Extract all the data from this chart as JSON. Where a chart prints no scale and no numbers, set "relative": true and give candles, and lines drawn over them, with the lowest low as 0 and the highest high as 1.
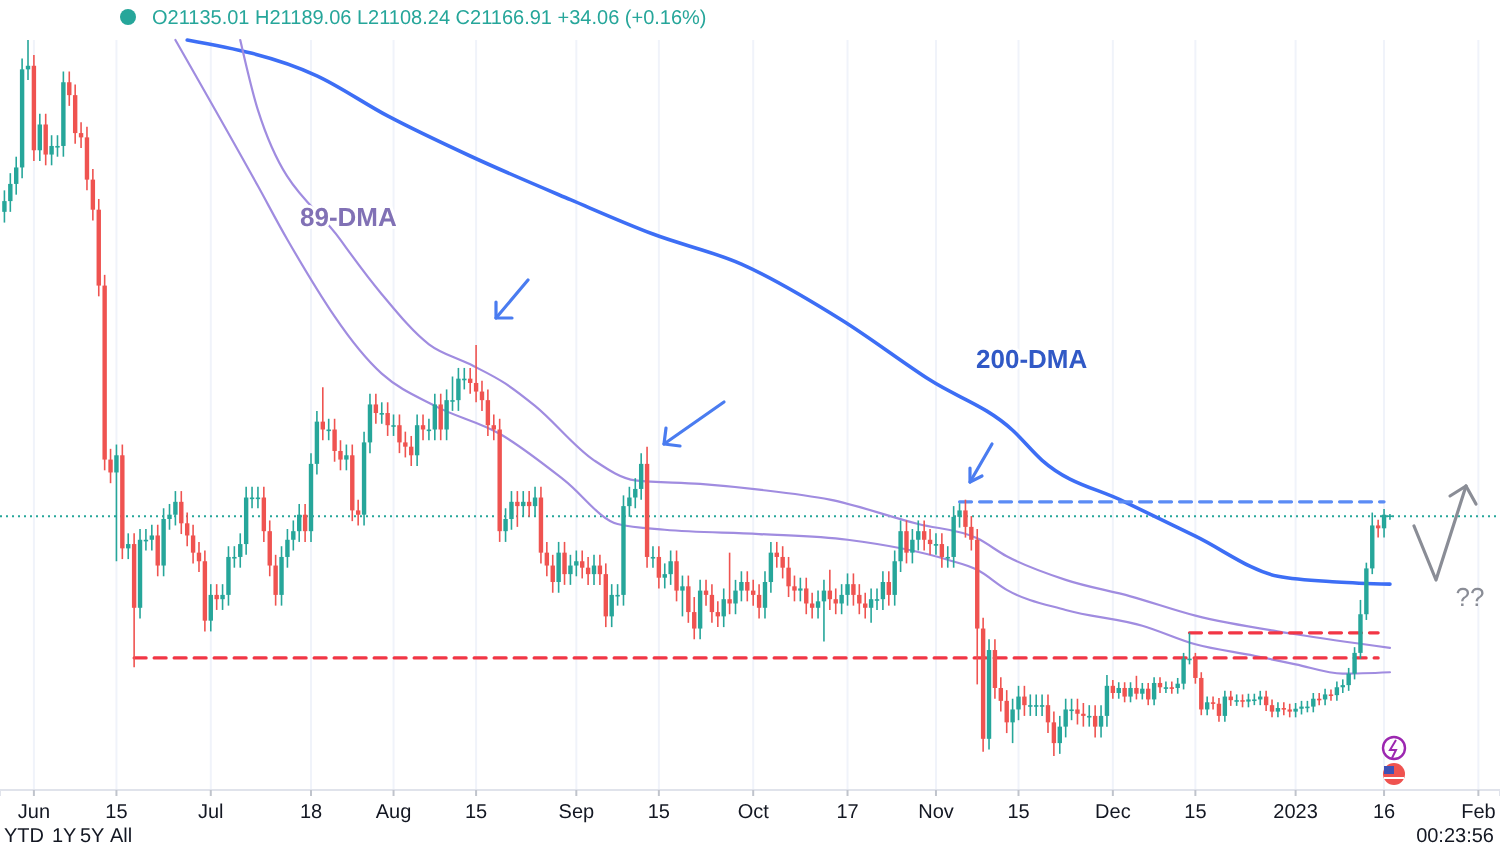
{
  "chart_data": {
    "type": "candlestick",
    "relative": true,
    "grid": "x",
    "xlim": [
      "2022-05-26T06:00",
      "2023-02-04T16:00"
    ],
    "xticks": [
      {
        "value": "2022-06-01",
        "label": "Jun"
      },
      {
        "value": "2022-06-15",
        "label": "15"
      },
      {
        "value": "2022-07-01",
        "label": "Jul"
      },
      {
        "value": "2022-07-18",
        "label": "18"
      },
      {
        "value": "2022-08-01",
        "label": "Aug"
      },
      {
        "value": "2022-08-15",
        "label": "15"
      },
      {
        "value": "2022-09-01",
        "label": "Sep"
      },
      {
        "value": "2022-09-15",
        "label": "15"
      },
      {
        "value": "2022-10-01",
        "label": "Oct"
      },
      {
        "value": "2022-10-17",
        "label": "17"
      },
      {
        "value": "2022-11-01",
        "label": "Nov"
      },
      {
        "value": "2022-11-15",
        "label": "15"
      },
      {
        "value": "2022-12-01",
        "label": "Dec"
      },
      {
        "value": "2022-12-15",
        "label": "15"
      },
      {
        "value": "2023-01-01",
        "label": "2023"
      },
      {
        "value": "2023-01-16",
        "label": "16"
      },
      {
        "value": "2023-02-01",
        "label": "Feb"
      }
    ],
    "x": [
      "2022-05-27",
      "2022-05-28",
      "2022-05-29",
      "2022-05-30",
      "2022-05-31",
      "2022-06-01",
      "2022-06-02",
      "2022-06-03",
      "2022-06-04",
      "2022-06-05",
      "2022-06-06",
      "2022-06-07",
      "2022-06-08",
      "2022-06-09",
      "2022-06-10",
      "2022-06-11",
      "2022-06-12",
      "2022-06-13",
      "2022-06-14",
      "2022-06-15",
      "2022-06-16",
      "2022-06-17",
      "2022-06-18",
      "2022-06-19",
      "2022-06-20",
      "2022-06-21",
      "2022-06-22",
      "2022-06-23",
      "2022-06-24",
      "2022-06-25",
      "2022-06-26",
      "2022-06-27",
      "2022-06-28",
      "2022-06-29",
      "2022-06-30",
      "2022-07-01",
      "2022-07-02",
      "2022-07-03",
      "2022-07-04",
      "2022-07-05",
      "2022-07-06",
      "2022-07-07",
      "2022-07-08",
      "2022-07-09",
      "2022-07-10",
      "2022-07-11",
      "2022-07-12",
      "2022-07-13",
      "2022-07-14",
      "2022-07-15",
      "2022-07-16",
      "2022-07-17",
      "2022-07-18",
      "2022-07-19",
      "2022-07-20",
      "2022-07-21",
      "2022-07-22",
      "2022-07-23",
      "2022-07-24",
      "2022-07-25",
      "2022-07-26",
      "2022-07-27",
      "2022-07-28",
      "2022-07-29",
      "2022-07-30",
      "2022-07-31",
      "2022-08-01",
      "2022-08-02",
      "2022-08-03",
      "2022-08-04",
      "2022-08-05",
      "2022-08-06",
      "2022-08-07",
      "2022-08-08",
      "2022-08-09",
      "2022-08-10",
      "2022-08-11",
      "2022-08-12",
      "2022-08-13",
      "2022-08-14",
      "2022-08-15",
      "2022-08-16",
      "2022-08-17",
      "2022-08-18",
      "2022-08-19",
      "2022-08-20",
      "2022-08-21",
      "2022-08-22",
      "2022-08-23",
      "2022-08-24",
      "2022-08-25",
      "2022-08-26",
      "2022-08-27",
      "2022-08-28",
      "2022-08-29",
      "2022-08-30",
      "2022-08-31",
      "2022-09-01",
      "2022-09-02",
      "2022-09-03",
      "2022-09-04",
      "2022-09-05",
      "2022-09-06",
      "2022-09-07",
      "2022-09-08",
      "2022-09-09",
      "2022-09-10",
      "2022-09-11",
      "2022-09-12",
      "2022-09-13",
      "2022-09-14",
      "2022-09-15",
      "2022-09-16",
      "2022-09-17",
      "2022-09-18",
      "2022-09-19",
      "2022-09-20",
      "2022-09-21",
      "2022-09-22",
      "2022-09-23",
      "2022-09-24",
      "2022-09-25",
      "2022-09-26",
      "2022-09-27",
      "2022-09-28",
      "2022-09-29",
      "2022-09-30",
      "2022-10-01",
      "2022-10-02",
      "2022-10-03",
      "2022-10-04",
      "2022-10-05",
      "2022-10-06",
      "2022-10-07",
      "2022-10-08",
      "2022-10-09",
      "2022-10-10",
      "2022-10-11",
      "2022-10-12",
      "2022-10-13",
      "2022-10-14",
      "2022-10-15",
      "2022-10-16",
      "2022-10-17",
      "2022-10-18",
      "2022-10-19",
      "2022-10-20",
      "2022-10-21",
      "2022-10-22",
      "2022-10-23",
      "2022-10-24",
      "2022-10-25",
      "2022-10-26",
      "2022-10-27",
      "2022-10-28",
      "2022-10-29",
      "2022-10-30",
      "2022-10-31",
      "2022-11-01",
      "2022-11-02",
      "2022-11-03",
      "2022-11-04",
      "2022-11-05",
      "2022-11-06",
      "2022-11-07",
      "2022-11-08",
      "2022-11-09",
      "2022-11-10",
      "2022-11-11",
      "2022-11-12",
      "2022-11-13",
      "2022-11-14",
      "2022-11-15",
      "2022-11-16",
      "2022-11-17",
      "2022-11-18",
      "2022-11-19",
      "2022-11-20",
      "2022-11-21",
      "2022-11-22",
      "2022-11-23",
      "2022-11-24",
      "2022-11-25",
      "2022-11-26",
      "2022-11-27",
      "2022-11-28",
      "2022-11-29",
      "2022-11-30",
      "2022-12-01",
      "2022-12-02",
      "2022-12-03",
      "2022-12-04",
      "2022-12-05",
      "2022-12-06",
      "2022-12-07",
      "2022-12-08",
      "2022-12-09",
      "2022-12-10",
      "2022-12-11",
      "2022-12-12",
      "2022-12-13",
      "2022-12-14",
      "2022-12-15",
      "2022-12-16",
      "2022-12-17",
      "2022-12-18",
      "2022-12-19",
      "2022-12-20",
      "2022-12-21",
      "2022-12-22",
      "2022-12-23",
      "2022-12-24",
      "2022-12-25",
      "2022-12-26",
      "2022-12-27",
      "2022-12-28",
      "2022-12-29",
      "2022-12-30",
      "2022-12-31",
      "2023-01-01",
      "2023-01-02",
      "2023-01-03",
      "2023-01-04",
      "2023-01-05",
      "2023-01-06",
      "2023-01-07",
      "2023-01-08",
      "2023-01-09",
      "2023-01-10",
      "2023-01-11",
      "2023-01-12",
      "2023-01-13",
      "2023-01-14",
      "2023-01-15",
      "2023-01-16",
      "2023-01-17"
    ],
    "ohlc": [
      [
        0.76,
        0.79,
        0.745,
        0.775
      ],
      [
        0.775,
        0.814,
        0.76,
        0.799
      ],
      [
        0.799,
        0.837,
        0.784,
        0.822
      ],
      [
        0.822,
        0.974,
        0.807,
        0.959
      ],
      [
        0.959,
        1,
        0.944,
        0.964
      ],
      [
        0.964,
        0.979,
        0.831,
        0.846
      ],
      [
        0.846,
        0.897,
        0.831,
        0.882
      ],
      [
        0.882,
        0.897,
        0.825,
        0.84
      ],
      [
        0.84,
        0.867,
        0.825,
        0.852
      ],
      [
        0.852,
        0.867,
        0.837,
        0.852
      ],
      [
        0.852,
        0.956,
        0.837,
        0.941
      ],
      [
        0.941,
        0.956,
        0.908,
        0.923
      ],
      [
        0.923,
        0.938,
        0.855,
        0.87
      ],
      [
        0.87,
        0.885,
        0.849,
        0.864
      ],
      [
        0.864,
        0.879,
        0.79,
        0.805
      ],
      [
        0.805,
        0.82,
        0.748,
        0.763
      ],
      [
        0.763,
        0.778,
        0.642,
        0.657
      ],
      [
        0.657,
        0.672,
        0.399,
        0.414
      ],
      [
        0.414,
        0.429,
        0.381,
        0.396
      ],
      [
        0.396,
        0.435,
        0.272,
        0.42
      ],
      [
        0.42,
        0.435,
        0.275,
        0.29
      ],
      [
        0.29,
        0.311,
        0.275,
        0.296
      ],
      [
        0.296,
        0.311,
        0.124,
        0.207
      ],
      [
        0.207,
        0.317,
        0.192,
        0.302
      ],
      [
        0.302,
        0.317,
        0.287,
        0.302
      ],
      [
        0.302,
        0.323,
        0.287,
        0.308
      ],
      [
        0.308,
        0.323,
        0.251,
        0.266
      ],
      [
        0.266,
        0.346,
        0.251,
        0.331
      ],
      [
        0.331,
        0.352,
        0.316,
        0.337
      ],
      [
        0.337,
        0.37,
        0.322,
        0.355
      ],
      [
        0.355,
        0.37,
        0.31,
        0.325
      ],
      [
        0.325,
        0.34,
        0.293,
        0.308
      ],
      [
        0.308,
        0.323,
        0.269,
        0.284
      ],
      [
        0.284,
        0.299,
        0.257,
        0.272
      ],
      [
        0.272,
        0.287,
        0.174,
        0.189
      ],
      [
        0.189,
        0.24,
        0.174,
        0.225
      ],
      [
        0.225,
        0.24,
        0.204,
        0.219
      ],
      [
        0.219,
        0.24,
        0.204,
        0.225
      ],
      [
        0.225,
        0.293,
        0.21,
        0.278
      ],
      [
        0.278,
        0.293,
        0.263,
        0.278
      ],
      [
        0.278,
        0.311,
        0.263,
        0.296
      ],
      [
        0.296,
        0.376,
        0.281,
        0.361
      ],
      [
        0.361,
        0.376,
        0.346,
        0.361
      ],
      [
        0.361,
        0.376,
        0.346,
        0.361
      ],
      [
        0.361,
        0.376,
        0.299,
        0.314
      ],
      [
        0.314,
        0.329,
        0.251,
        0.266
      ],
      [
        0.266,
        0.281,
        0.21,
        0.225
      ],
      [
        0.225,
        0.293,
        0.21,
        0.278
      ],
      [
        0.278,
        0.317,
        0.263,
        0.302
      ],
      [
        0.302,
        0.329,
        0.287,
        0.314
      ],
      [
        0.314,
        0.352,
        0.299,
        0.337
      ],
      [
        0.337,
        0.352,
        0.299,
        0.314
      ],
      [
        0.314,
        0.423,
        0.299,
        0.408
      ],
      [
        0.408,
        0.482,
        0.393,
        0.467
      ],
      [
        0.467,
        0.515,
        0.441,
        0.456
      ],
      [
        0.456,
        0.471,
        0.441,
        0.456
      ],
      [
        0.456,
        0.471,
        0.411,
        0.426
      ],
      [
        0.426,
        0.441,
        0.399,
        0.414
      ],
      [
        0.414,
        0.435,
        0.399,
        0.42
      ],
      [
        0.42,
        0.435,
        0.328,
        0.343
      ],
      [
        0.343,
        0.358,
        0.322,
        0.337
      ],
      [
        0.337,
        0.453,
        0.322,
        0.438
      ],
      [
        0.438,
        0.506,
        0.423,
        0.491
      ],
      [
        0.491,
        0.506,
        0.464,
        0.479
      ],
      [
        0.479,
        0.494,
        0.464,
        0.479
      ],
      [
        0.479,
        0.494,
        0.447,
        0.462
      ],
      [
        0.462,
        0.477,
        0.447,
        0.462
      ],
      [
        0.462,
        0.477,
        0.423,
        0.438
      ],
      [
        0.438,
        0.453,
        0.417,
        0.432
      ],
      [
        0.432,
        0.447,
        0.405,
        0.42
      ],
      [
        0.42,
        0.477,
        0.405,
        0.462
      ],
      [
        0.462,
        0.477,
        0.441,
        0.456
      ],
      [
        0.456,
        0.471,
        0.441,
        0.456
      ],
      [
        0.456,
        0.506,
        0.441,
        0.491
      ],
      [
        0.491,
        0.506,
        0.441,
        0.456
      ],
      [
        0.456,
        0.512,
        0.441,
        0.497
      ],
      [
        0.497,
        0.53,
        0.482,
        0.497
      ],
      [
        0.497,
        0.542,
        0.482,
        0.527
      ],
      [
        0.527,
        0.542,
        0.512,
        0.527
      ],
      [
        0.527,
        0.542,
        0.506,
        0.521
      ],
      [
        0.521,
        0.574,
        0.494,
        0.509
      ],
      [
        0.509,
        0.524,
        0.482,
        0.497
      ],
      [
        0.497,
        0.512,
        0.447,
        0.462
      ],
      [
        0.462,
        0.477,
        0.441,
        0.456
      ],
      [
        0.456,
        0.471,
        0.299,
        0.314
      ],
      [
        0.314,
        0.346,
        0.299,
        0.331
      ],
      [
        0.331,
        0.37,
        0.316,
        0.355
      ],
      [
        0.355,
        0.37,
        0.32,
        0.349
      ],
      [
        0.349,
        0.37,
        0.334,
        0.355
      ],
      [
        0.355,
        0.37,
        0.334,
        0.349
      ],
      [
        0.349,
        0.376,
        0.334,
        0.361
      ],
      [
        0.361,
        0.376,
        0.269,
        0.284
      ],
      [
        0.284,
        0.299,
        0.251,
        0.266
      ],
      [
        0.266,
        0.281,
        0.228,
        0.243
      ],
      [
        0.243,
        0.299,
        0.228,
        0.284
      ],
      [
        0.284,
        0.299,
        0.239,
        0.254
      ],
      [
        0.254,
        0.281,
        0.239,
        0.266
      ],
      [
        0.266,
        0.287,
        0.251,
        0.272
      ],
      [
        0.272,
        0.287,
        0.248,
        0.263
      ],
      [
        0.263,
        0.278,
        0.239,
        0.254
      ],
      [
        0.254,
        0.281,
        0.239,
        0.266
      ],
      [
        0.266,
        0.281,
        0.239,
        0.254
      ],
      [
        0.254,
        0.269,
        0.18,
        0.195
      ],
      [
        0.195,
        0.24,
        0.18,
        0.225
      ],
      [
        0.225,
        0.24,
        0.21,
        0.225
      ],
      [
        0.225,
        0.364,
        0.21,
        0.349
      ],
      [
        0.349,
        0.376,
        0.334,
        0.361
      ],
      [
        0.361,
        0.388,
        0.346,
        0.373
      ],
      [
        0.373,
        0.423,
        0.358,
        0.408
      ],
      [
        0.408,
        0.432,
        0.263,
        0.278
      ],
      [
        0.278,
        0.293,
        0.263,
        0.278
      ],
      [
        0.278,
        0.293,
        0.234,
        0.249
      ],
      [
        0.249,
        0.269,
        0.234,
        0.254
      ],
      [
        0.254,
        0.287,
        0.239,
        0.272
      ],
      [
        0.272,
        0.287,
        0.216,
        0.231
      ],
      [
        0.231,
        0.252,
        0.195,
        0.237
      ],
      [
        0.237,
        0.252,
        0.186,
        0.201
      ],
      [
        0.201,
        0.222,
        0.163,
        0.178
      ],
      [
        0.178,
        0.246,
        0.163,
        0.231
      ],
      [
        0.231,
        0.246,
        0.21,
        0.225
      ],
      [
        0.225,
        0.24,
        0.186,
        0.201
      ],
      [
        0.201,
        0.216,
        0.18,
        0.195
      ],
      [
        0.195,
        0.234,
        0.18,
        0.219
      ],
      [
        0.219,
        0.284,
        0.198,
        0.213
      ],
      [
        0.213,
        0.246,
        0.198,
        0.231
      ],
      [
        0.231,
        0.258,
        0.216,
        0.243
      ],
      [
        0.243,
        0.258,
        0.216,
        0.231
      ],
      [
        0.231,
        0.246,
        0.21,
        0.225
      ],
      [
        0.225,
        0.24,
        0.192,
        0.207
      ],
      [
        0.207,
        0.258,
        0.192,
        0.243
      ],
      [
        0.243,
        0.299,
        0.228,
        0.284
      ],
      [
        0.284,
        0.299,
        0.263,
        0.278
      ],
      [
        0.278,
        0.293,
        0.248,
        0.263
      ],
      [
        0.263,
        0.278,
        0.222,
        0.237
      ],
      [
        0.237,
        0.252,
        0.216,
        0.231
      ],
      [
        0.231,
        0.249,
        0.216,
        0.234
      ],
      [
        0.234,
        0.249,
        0.198,
        0.213
      ],
      [
        0.213,
        0.228,
        0.192,
        0.207
      ],
      [
        0.207,
        0.231,
        0.192,
        0.216
      ],
      [
        0.216,
        0.246,
        0.16,
        0.231
      ],
      [
        0.231,
        0.26,
        0.204,
        0.219
      ],
      [
        0.219,
        0.234,
        0.198,
        0.213
      ],
      [
        0.213,
        0.24,
        0.198,
        0.225
      ],
      [
        0.225,
        0.255,
        0.21,
        0.24
      ],
      [
        0.24,
        0.255,
        0.21,
        0.225
      ],
      [
        0.225,
        0.24,
        0.198,
        0.213
      ],
      [
        0.213,
        0.228,
        0.192,
        0.207
      ],
      [
        0.207,
        0.234,
        0.186,
        0.219
      ],
      [
        0.219,
        0.234,
        0.204,
        0.219
      ],
      [
        0.219,
        0.258,
        0.204,
        0.243
      ],
      [
        0.243,
        0.258,
        0.21,
        0.225
      ],
      [
        0.225,
        0.287,
        0.21,
        0.272
      ],
      [
        0.272,
        0.329,
        0.257,
        0.314
      ],
      [
        0.314,
        0.329,
        0.269,
        0.284
      ],
      [
        0.284,
        0.317,
        0.269,
        0.302
      ],
      [
        0.302,
        0.329,
        0.287,
        0.314
      ],
      [
        0.314,
        0.329,
        0.287,
        0.302
      ],
      [
        0.302,
        0.317,
        0.281,
        0.296
      ],
      [
        0.296,
        0.311,
        0.281,
        0.296
      ],
      [
        0.296,
        0.311,
        0.263,
        0.278
      ],
      [
        0.278,
        0.293,
        0.263,
        0.278
      ],
      [
        0.278,
        0.349,
        0.263,
        0.334
      ],
      [
        0.334,
        0.353,
        0.319,
        0.343
      ],
      [
        0.343,
        0.358,
        0.305,
        0.32
      ],
      [
        0.32,
        0.335,
        0.287,
        0.302
      ],
      [
        0.302,
        0.317,
        0.1,
        0.178
      ],
      [
        0.178,
        0.193,
        0.006,
        0.024
      ],
      [
        0.024,
        0.163,
        0.009,
        0.148
      ],
      [
        0.148,
        0.163,
        0.08,
        0.095
      ],
      [
        0.095,
        0.11,
        0.062,
        0.077
      ],
      [
        0.077,
        0.092,
        0.032,
        0.047
      ],
      [
        0.047,
        0.08,
        0.018,
        0.065
      ],
      [
        0.065,
        0.098,
        0.05,
        0.083
      ],
      [
        0.083,
        0.098,
        0.056,
        0.071
      ],
      [
        0.071,
        0.086,
        0.056,
        0.071
      ],
      [
        0.071,
        0.086,
        0.056,
        0.071
      ],
      [
        0.071,
        0.086,
        0.056,
        0.071
      ],
      [
        0.071,
        0.086,
        0.032,
        0.047
      ],
      [
        0.047,
        0.062,
        0,
        0.018
      ],
      [
        0.018,
        0.056,
        0.003,
        0.041
      ],
      [
        0.041,
        0.08,
        0.026,
        0.065
      ],
      [
        0.065,
        0.08,
        0.05,
        0.065
      ],
      [
        0.065,
        0.08,
        0.044,
        0.059
      ],
      [
        0.059,
        0.074,
        0.041,
        0.056
      ],
      [
        0.056,
        0.071,
        0.041,
        0.056
      ],
      [
        0.056,
        0.071,
        0.026,
        0.041
      ],
      [
        0.041,
        0.071,
        0.026,
        0.056
      ],
      [
        0.056,
        0.113,
        0.041,
        0.098
      ],
      [
        0.098,
        0.106,
        0.08,
        0.088
      ],
      [
        0.088,
        0.103,
        0.08,
        0.095
      ],
      [
        0.095,
        0.103,
        0.075,
        0.083
      ],
      [
        0.083,
        0.103,
        0.075,
        0.095
      ],
      [
        0.095,
        0.112,
        0.079,
        0.087
      ],
      [
        0.087,
        0.102,
        0.079,
        0.094
      ],
      [
        0.094,
        0.102,
        0.071,
        0.079
      ],
      [
        0.079,
        0.11,
        0.071,
        0.102
      ],
      [
        0.102,
        0.11,
        0.088,
        0.096
      ],
      [
        0.096,
        0.104,
        0.088,
        0.096
      ],
      [
        0.096,
        0.104,
        0.087,
        0.095
      ],
      [
        0.095,
        0.109,
        0.087,
        0.101
      ],
      [
        0.101,
        0.144,
        0.093,
        0.136
      ],
      [
        0.136,
        0.172,
        0.128,
        0.136
      ],
      [
        0.136,
        0.144,
        0.101,
        0.109
      ],
      [
        0.109,
        0.117,
        0.057,
        0.065
      ],
      [
        0.065,
        0.083,
        0.057,
        0.075
      ],
      [
        0.075,
        0.083,
        0.065,
        0.073
      ],
      [
        0.073,
        0.081,
        0.048,
        0.056
      ],
      [
        0.056,
        0.091,
        0.048,
        0.083
      ],
      [
        0.083,
        0.091,
        0.07,
        0.078
      ],
      [
        0.078,
        0.086,
        0.07,
        0.078
      ],
      [
        0.078,
        0.086,
        0.068,
        0.076
      ],
      [
        0.076,
        0.087,
        0.068,
        0.079
      ],
      [
        0.079,
        0.087,
        0.071,
        0.079
      ],
      [
        0.079,
        0.091,
        0.071,
        0.083
      ],
      [
        0.083,
        0.091,
        0.063,
        0.071
      ],
      [
        0.071,
        0.079,
        0.054,
        0.062
      ],
      [
        0.062,
        0.075,
        0.054,
        0.067
      ],
      [
        0.067,
        0.075,
        0.057,
        0.065
      ],
      [
        0.065,
        0.073,
        0.054,
        0.062
      ],
      [
        0.062,
        0.074,
        0.054,
        0.066
      ],
      [
        0.066,
        0.077,
        0.058,
        0.069
      ],
      [
        0.069,
        0.077,
        0.061,
        0.069
      ],
      [
        0.069,
        0.088,
        0.061,
        0.08
      ],
      [
        0.08,
        0.088,
        0.071,
        0.079
      ],
      [
        0.079,
        0.094,
        0.071,
        0.086
      ],
      [
        0.086,
        0.093,
        0.077,
        0.085
      ],
      [
        0.085,
        0.104,
        0.077,
        0.096
      ],
      [
        0.096,
        0.107,
        0.088,
        0.099
      ],
      [
        0.099,
        0.123,
        0.091,
        0.115
      ],
      [
        0.115,
        0.152,
        0.107,
        0.144
      ],
      [
        0.144,
        0.218,
        0.136,
        0.198
      ],
      [
        0.198,
        0.27,
        0.19,
        0.262
      ],
      [
        0.262,
        0.34,
        0.254,
        0.322
      ],
      [
        0.322,
        0.33,
        0.305,
        0.318
      ],
      [
        0.318,
        0.345,
        0.305,
        0.337
      ],
      [
        0.334,
        0.338,
        0.33,
        0.336
      ]
    ],
    "series": [
      {
        "type": "line",
        "name": "200-DMA",
        "color": "#3d6ef5",
        "x": [
          "2022-06-27",
          "2022-07-19",
          "2022-07-31",
          "2022-08-14",
          "2022-08-31",
          "2022-09-14",
          "2022-09-29",
          "2022-10-16",
          "2022-10-31",
          "2022-11-14",
          "2022-11-19",
          "2022-12-03",
          "2022-12-15",
          "2022-12-29",
          "2023-01-08",
          "2023-01-17"
        ],
        "values": [
          1.0,
          0.95,
          0.894,
          0.838,
          0.777,
          0.729,
          0.687,
          0.609,
          0.525,
          0.455,
          0.413,
          0.355,
          0.307,
          0.251,
          0.243,
          0.24
        ]
      },
      {
        "type": "line",
        "name": "89-DMA",
        "color": "#a08ce0",
        "x": [
          "2022-07-06",
          "2022-07-09",
          "2022-07-23",
          "2022-07-30",
          "2022-08-07",
          "2022-08-14",
          "2022-08-20",
          "2022-08-25",
          "2022-09-04",
          "2022-09-11",
          "2022-09-22",
          "2022-10-02",
          "2022-10-14",
          "2022-10-29",
          "2022-11-08",
          "2022-11-13",
          "2022-11-23",
          "2022-12-04",
          "2022-12-15",
          "2023-01-01",
          "2023-01-17"
        ],
        "values": [
          1.0,
          0.902,
          0.721,
          0.645,
          0.575,
          0.547,
          0.52,
          0.489,
          0.413,
          0.385,
          0.38,
          0.372,
          0.358,
          0.324,
          0.304,
          0.279,
          0.246,
          0.223,
          0.196,
          0.17,
          0.151
        ]
      },
      {
        "type": "line",
        "color": "#a08ce0",
        "x": [
          "2022-06-25",
          "2022-07-09",
          "2022-07-14",
          "2022-07-30",
          "2022-08-08",
          "2022-08-19",
          "2022-08-30",
          "2022-09-08",
          "2022-09-16",
          "2022-10-02",
          "2022-10-17",
          "2022-11-03",
          "2022-11-08",
          "2022-11-13",
          "2022-11-23",
          "2022-12-06",
          "2022-12-15",
          "2022-12-25",
          "2023-01-01",
          "2023-01-09",
          "2023-01-17"
        ],
        "values": [
          1.0,
          0.796,
          0.721,
          0.534,
          0.489,
          0.45,
          0.385,
          0.324,
          0.316,
          0.31,
          0.302,
          0.274,
          0.26,
          0.232,
          0.204,
          0.182,
          0.156,
          0.14,
          0.128,
          0.115,
          0.117
        ]
      },
      {
        "type": "line",
        "color": "#f23645",
        "line_style": "dashed",
        "x": [
          "2022-06-18",
          "2023-01-15"
        ],
        "values": [
          0.137,
          0.137
        ]
      },
      {
        "type": "line",
        "color": "#f23645",
        "line_style": "dashed",
        "x": [
          "2022-12-14",
          "2023-01-15"
        ],
        "values": [
          0.172,
          0.172
        ]
      },
      {
        "type": "line",
        "color": "#5b8cf5",
        "line_style": "dashed",
        "x": [
          "2022-11-05",
          "2023-01-16"
        ],
        "values": [
          0.355,
          0.355
        ]
      }
    ],
    "ref_lines": [
      {
        "axis": "y",
        "value": 0.335,
        "color": "#26a69a",
        "line_style": "dotted"
      }
    ],
    "annotations": [
      "O21135.01 H21189.06 L21108.24 C21166.91 +34.06 (+0.16%)",
      "??",
      "YTD",
      "1Y",
      "5Y",
      "All",
      "00:23:56"
    ]
  }
}
